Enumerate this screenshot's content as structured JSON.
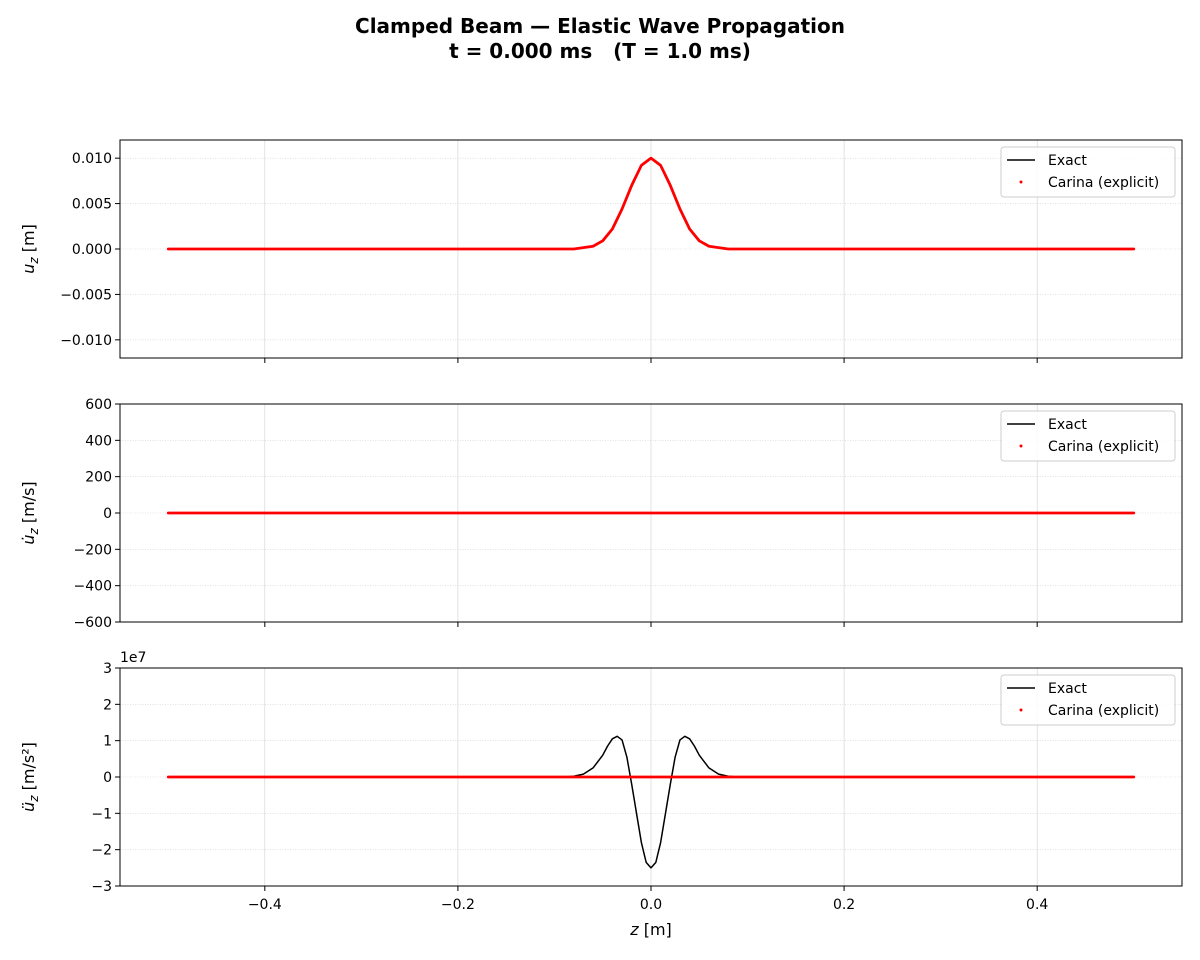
{
  "figure": {
    "title_line1": "Clamped Beam — Elastic Wave Propagation",
    "title_line2": "t = 0.000 ms   (T = 1.0 ms)"
  },
  "chart_data": [
    {
      "type": "line",
      "ylabel": "u_z [m]",
      "xlim": [
        -0.55,
        0.55
      ],
      "ylim": [
        -0.012,
        0.012
      ],
      "yticks": [
        -0.01,
        -0.005,
        0.0,
        0.005,
        0.01
      ],
      "ytick_labels": [
        "−0.010",
        "−0.005",
        "0.000",
        "0.005",
        "0.010"
      ],
      "grid": true,
      "legend_position": "top-right",
      "series": [
        {
          "name": "Exact",
          "style": "line",
          "color": "#000000",
          "x": [
            -0.5,
            -0.08,
            -0.06,
            -0.05,
            -0.04,
            -0.03,
            -0.02,
            -0.01,
            0.0,
            0.01,
            0.02,
            0.03,
            0.04,
            0.05,
            0.06,
            0.08,
            0.5
          ],
          "y": [
            0,
            0.0,
            0.0003,
            0.0009,
            0.0022,
            0.0044,
            0.007,
            0.0092,
            0.01,
            0.0092,
            0.007,
            0.0044,
            0.0022,
            0.0009,
            0.0003,
            0.0,
            0
          ]
        },
        {
          "name": "Carina (explicit)",
          "style": "markers",
          "color": "#ff0000",
          "x": [
            -0.5,
            -0.08,
            -0.06,
            -0.05,
            -0.04,
            -0.03,
            -0.02,
            -0.01,
            0.0,
            0.01,
            0.02,
            0.03,
            0.04,
            0.05,
            0.06,
            0.08,
            0.5
          ],
          "y": [
            0,
            0.0,
            0.0003,
            0.0009,
            0.0022,
            0.0044,
            0.007,
            0.0092,
            0.01,
            0.0092,
            0.007,
            0.0044,
            0.0022,
            0.0009,
            0.0003,
            0.0,
            0
          ]
        }
      ]
    },
    {
      "type": "line",
      "ylabel": "u̇_z [m/s]",
      "xlim": [
        -0.55,
        0.55
      ],
      "ylim": [
        -600,
        600
      ],
      "yticks": [
        -600,
        -400,
        -200,
        0,
        200,
        400,
        600
      ],
      "ytick_labels": [
        "−600",
        "−400",
        "−200",
        "0",
        "200",
        "400",
        "600"
      ],
      "grid": true,
      "legend_position": "top-right",
      "series": [
        {
          "name": "Exact",
          "style": "line",
          "color": "#000000",
          "x": [
            -0.5,
            0.5
          ],
          "y": [
            0,
            0
          ]
        },
        {
          "name": "Carina (explicit)",
          "style": "markers",
          "color": "#ff0000",
          "x": [
            -0.5,
            0.5
          ],
          "y": [
            0,
            0
          ]
        }
      ]
    },
    {
      "type": "line",
      "ylabel": "ü_z [m/s²]",
      "xlabel": "z [m]",
      "xlim": [
        -0.55,
        0.55
      ],
      "ylim": [
        -3,
        3
      ],
      "yscale_label": "1e7",
      "yticks": [
        -3,
        -2,
        -1,
        0,
        1,
        2,
        3
      ],
      "ytick_labels": [
        "−3",
        "−2",
        "−1",
        "0",
        "1",
        "2",
        "3"
      ],
      "xticks": [
        -0.4,
        -0.2,
        0.0,
        0.2,
        0.4
      ],
      "xtick_labels": [
        "−0.4",
        "−0.2",
        "0.0",
        "0.2",
        "0.4"
      ],
      "grid": true,
      "legend_position": "top-right",
      "series": [
        {
          "name": "Exact",
          "style": "line",
          "color": "#000000",
          "x": [
            -0.5,
            -0.09,
            -0.08,
            -0.07,
            -0.06,
            -0.05,
            -0.045,
            -0.04,
            -0.035,
            -0.03,
            -0.025,
            -0.02,
            -0.015,
            -0.01,
            -0.005,
            0.0,
            0.005,
            0.01,
            0.015,
            0.02,
            0.025,
            0.03,
            0.035,
            0.04,
            0.045,
            0.05,
            0.06,
            0.07,
            0.08,
            0.09,
            0.5
          ],
          "y": [
            0,
            0.0,
            0.02,
            0.08,
            0.25,
            0.6,
            0.85,
            1.05,
            1.12,
            1.02,
            0.55,
            -0.2,
            -1.0,
            -1.8,
            -2.35,
            -2.5,
            -2.35,
            -1.8,
            -1.0,
            -0.2,
            0.55,
            1.02,
            1.12,
            1.05,
            0.85,
            0.6,
            0.25,
            0.08,
            0.02,
            0.0,
            0
          ]
        },
        {
          "name": "Carina (explicit)",
          "style": "markers",
          "color": "#ff0000",
          "x": [
            -0.5,
            0.5
          ],
          "y": [
            0,
            0
          ]
        }
      ]
    }
  ]
}
